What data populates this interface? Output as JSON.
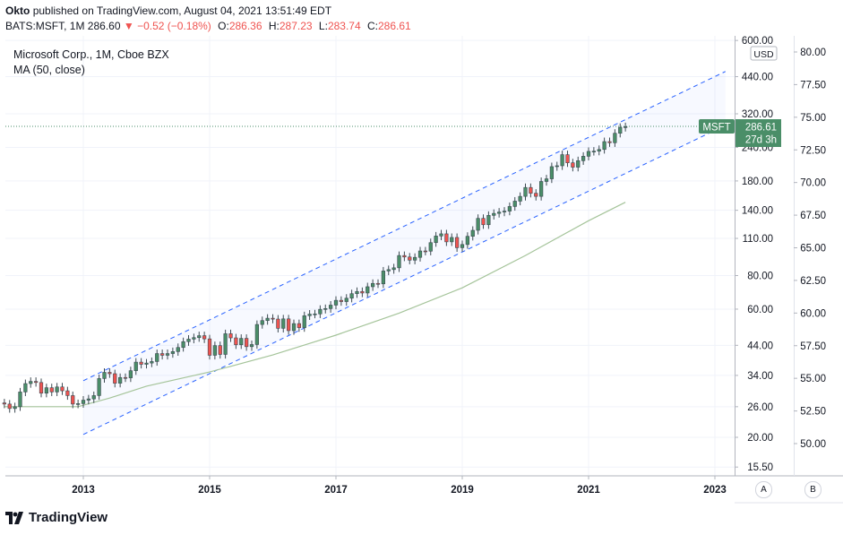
{
  "header": {
    "author": "Okto",
    "published_text": "published on TradingView.com, August 04, 2021 13:51:49 EDT",
    "symbol": "BATS:MSFT, 1M",
    "last": "286.60",
    "arrow": "▼",
    "change": "−0.52 (−0.18%)",
    "o_label": "O:",
    "o_value": "286.36",
    "h_label": "H:",
    "h_value": "287.23",
    "l_label": "L:",
    "l_value": "283.74",
    "c_label": "C:",
    "c_value": "286.61"
  },
  "legend": {
    "title": "Microsoft Corp., 1M, Cboe BZX",
    "ma": "MA (50, close)"
  },
  "price_axis": {
    "currency": "USD",
    "ticks": [
      "600.00",
      "440.00",
      "320.00",
      "240.00",
      "180.00",
      "140.00",
      "110.00",
      "80.00",
      "60.00",
      "44.00",
      "34.00",
      "26.00",
      "20.00",
      "15.50"
    ]
  },
  "secondary_axis": {
    "ticks": [
      "80.00",
      "77.50",
      "75.00",
      "72.50",
      "70.00",
      "67.50",
      "65.00",
      "62.50",
      "60.00",
      "57.50",
      "55.00",
      "52.50",
      "50.00"
    ]
  },
  "time_axis": {
    "labels": [
      "2013",
      "2015",
      "2017",
      "2019",
      "2021",
      "2023"
    ]
  },
  "last_price_tag": {
    "symbol": "MSFT",
    "price": "286.61",
    "countdown": "27d 3h"
  },
  "buttons": {
    "auto": "A",
    "b": "B"
  },
  "footer": {
    "brand": "TradingView"
  },
  "colors": {
    "up": "#26a69a",
    "up_body": "#4a8e68",
    "down": "#ef5350",
    "channel": "#2962ff",
    "ma": "#a5c49a",
    "tag": "#4a8e68"
  },
  "chart_data": {
    "type": "candlestick",
    "title": "Microsoft Corp., 1M, Cboe BZX",
    "symbol": "MSFT",
    "interval": "1M",
    "scale": "log",
    "ylim": [
      15.5,
      600
    ],
    "x_range": [
      "2011-09",
      "2023-06"
    ],
    "series": [
      {
        "name": "MSFT",
        "kind": "ohlc",
        "x": [
          "2011-10",
          "2011-11",
          "2011-12",
          "2012-01",
          "2012-02",
          "2012-03",
          "2012-04",
          "2012-05",
          "2012-06",
          "2012-07",
          "2012-08",
          "2012-09",
          "2012-10",
          "2012-11",
          "2012-12",
          "2013-01",
          "2013-02",
          "2013-03",
          "2013-04",
          "2013-05",
          "2013-06",
          "2013-07",
          "2013-08",
          "2013-09",
          "2013-10",
          "2013-11",
          "2013-12",
          "2014-01",
          "2014-02",
          "2014-03",
          "2014-04",
          "2014-05",
          "2014-06",
          "2014-07",
          "2014-08",
          "2014-09",
          "2014-10",
          "2014-11",
          "2014-12",
          "2015-01",
          "2015-02",
          "2015-03",
          "2015-04",
          "2015-05",
          "2015-06",
          "2015-07",
          "2015-08",
          "2015-09",
          "2015-10",
          "2015-11",
          "2015-12",
          "2016-01",
          "2016-02",
          "2016-03",
          "2016-04",
          "2016-05",
          "2016-06",
          "2016-07",
          "2016-08",
          "2016-09",
          "2016-10",
          "2016-11",
          "2016-12",
          "2017-01",
          "2017-02",
          "2017-03",
          "2017-04",
          "2017-05",
          "2017-06",
          "2017-07",
          "2017-08",
          "2017-09",
          "2017-10",
          "2017-11",
          "2017-12",
          "2018-01",
          "2018-02",
          "2018-03",
          "2018-04",
          "2018-05",
          "2018-06",
          "2018-07",
          "2018-08",
          "2018-09",
          "2018-10",
          "2018-11",
          "2018-12",
          "2019-01",
          "2019-02",
          "2019-03",
          "2019-04",
          "2019-05",
          "2019-06",
          "2019-07",
          "2019-08",
          "2019-09",
          "2019-10",
          "2019-11",
          "2019-12",
          "2020-01",
          "2020-02",
          "2020-03",
          "2020-04",
          "2020-05",
          "2020-06",
          "2020-07",
          "2020-08",
          "2020-09",
          "2020-10",
          "2020-11",
          "2020-12",
          "2021-01",
          "2021-02",
          "2021-03",
          "2021-04",
          "2021-05",
          "2021-06",
          "2021-07",
          "2021-08"
        ],
        "close": [
          26.6,
          25.6,
          26.0,
          29.5,
          31.7,
          32.3,
          32.0,
          29.2,
          30.6,
          29.5,
          30.8,
          29.8,
          28.6,
          26.6,
          26.7,
          27.5,
          27.8,
          28.6,
          33.1,
          34.9,
          34.5,
          31.8,
          33.4,
          33.3,
          35.4,
          38.1,
          37.4,
          37.8,
          38.3,
          41.0,
          40.4,
          41.0,
          41.7,
          43.2,
          45.4,
          46.4,
          47.0,
          47.8,
          46.5,
          40.4,
          43.9,
          40.7,
          48.6,
          46.9,
          44.2,
          46.7,
          43.5,
          44.3,
          52.6,
          54.4,
          55.5,
          55.1,
          50.9,
          55.2,
          49.9,
          53.0,
          51.2,
          56.7,
          57.5,
          57.6,
          59.9,
          60.3,
          62.1,
          64.7,
          64.0,
          65.9,
          68.5,
          69.8,
          68.9,
          72.7,
          74.8,
          74.5,
          83.2,
          84.2,
          85.5,
          95.0,
          93.8,
          91.3,
          93.5,
          98.8,
          98.6,
          106.1,
          112.3,
          114.4,
          106.8,
          110.9,
          101.6,
          104.4,
          112.0,
          117.9,
          130.6,
          123.7,
          134.0,
          136.3,
          137.9,
          139.0,
          144.6,
          151.4,
          157.7,
          170.2,
          162.0,
          157.7,
          179.2,
          183.3,
          203.5,
          205.0,
          225.5,
          210.3,
          202.5,
          214.1,
          222.4,
          231.9,
          232.4,
          235.8,
          252.2,
          249.7,
          270.9,
          284.9,
          286.61
        ]
      },
      {
        "name": "MA (50, close)",
        "kind": "line",
        "x": [
          "2011-10",
          "2012-06",
          "2012-12",
          "2013-06",
          "2014-01",
          "2015-01",
          "2016-01",
          "2017-01",
          "2018-01",
          "2019-01",
          "2020-01",
          "2021-01",
          "2021-08"
        ],
        "values": [
          26.0,
          26.0,
          26.0,
          28.0,
          31.0,
          35.0,
          40.5,
          48.0,
          58.0,
          72.0,
          95.0,
          128.0,
          150.0
        ]
      }
    ],
    "channel": {
      "upper": [
        [
          "2013-01",
          32.5
        ],
        [
          "2023-03",
          460.0
        ]
      ],
      "lower": [
        [
          "2013-01",
          20.5
        ],
        [
          "2023-03",
          290.0
        ]
      ]
    },
    "last_value": 286.61,
    "grid": true
  }
}
